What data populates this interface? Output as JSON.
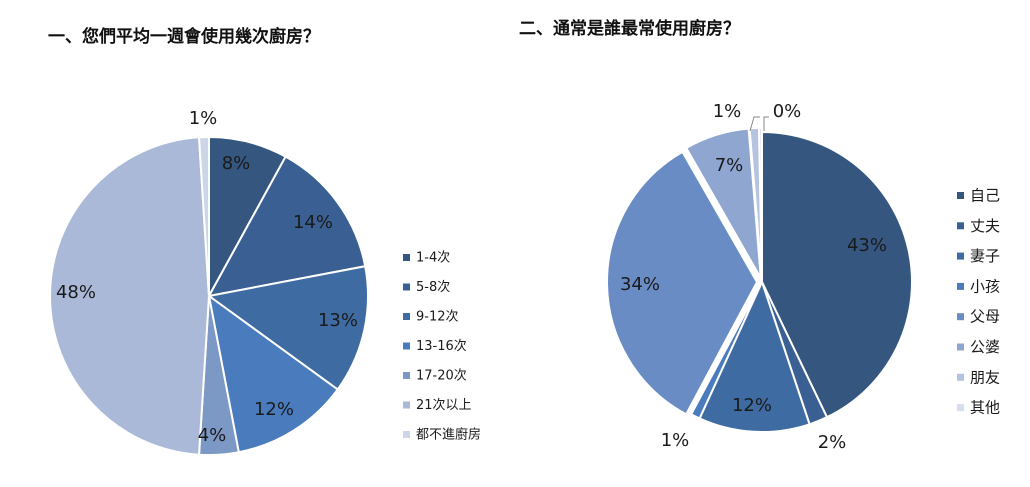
{
  "chart_data": [
    {
      "type": "pie",
      "title": "一、您們平均一週會使用幾次廚房？",
      "categories": [
        "1-4次",
        "5-8次",
        "9-12次",
        "13-16次",
        "17-20次",
        "21次以上",
        "都不進廚房"
      ],
      "values": [
        8,
        14,
        13,
        12,
        4,
        48,
        1
      ],
      "labels": [
        "8%",
        "14%",
        "13%",
        "12%",
        "4%",
        "48%",
        "1%"
      ],
      "colors": [
        "#35567f",
        "#3a6093",
        "#3f6ba3",
        "#4a7bbd",
        "#7c98c4",
        "#aab9d8",
        "#cdd6e8"
      ],
      "legend": "right"
    },
    {
      "type": "pie",
      "title": "二、通常是誰最常使用廚房？",
      "categories": [
        "自己",
        "丈夫",
        "妻子",
        "小孩",
        "父母",
        "公婆",
        "朋友",
        "其他"
      ],
      "values": [
        43,
        2,
        12,
        1,
        34,
        7,
        1,
        0.3
      ],
      "labels": [
        "43%",
        "2%",
        "12%",
        "1%",
        "34%",
        "7%",
        "1%",
        "0%"
      ],
      "colors": [
        "#35567f",
        "#3a6093",
        "#3f6ba3",
        "#4a7bbd",
        "#6a8cc4",
        "#8ea6d0",
        "#b4c3e0",
        "#d6deee"
      ],
      "legend": "right"
    }
  ]
}
